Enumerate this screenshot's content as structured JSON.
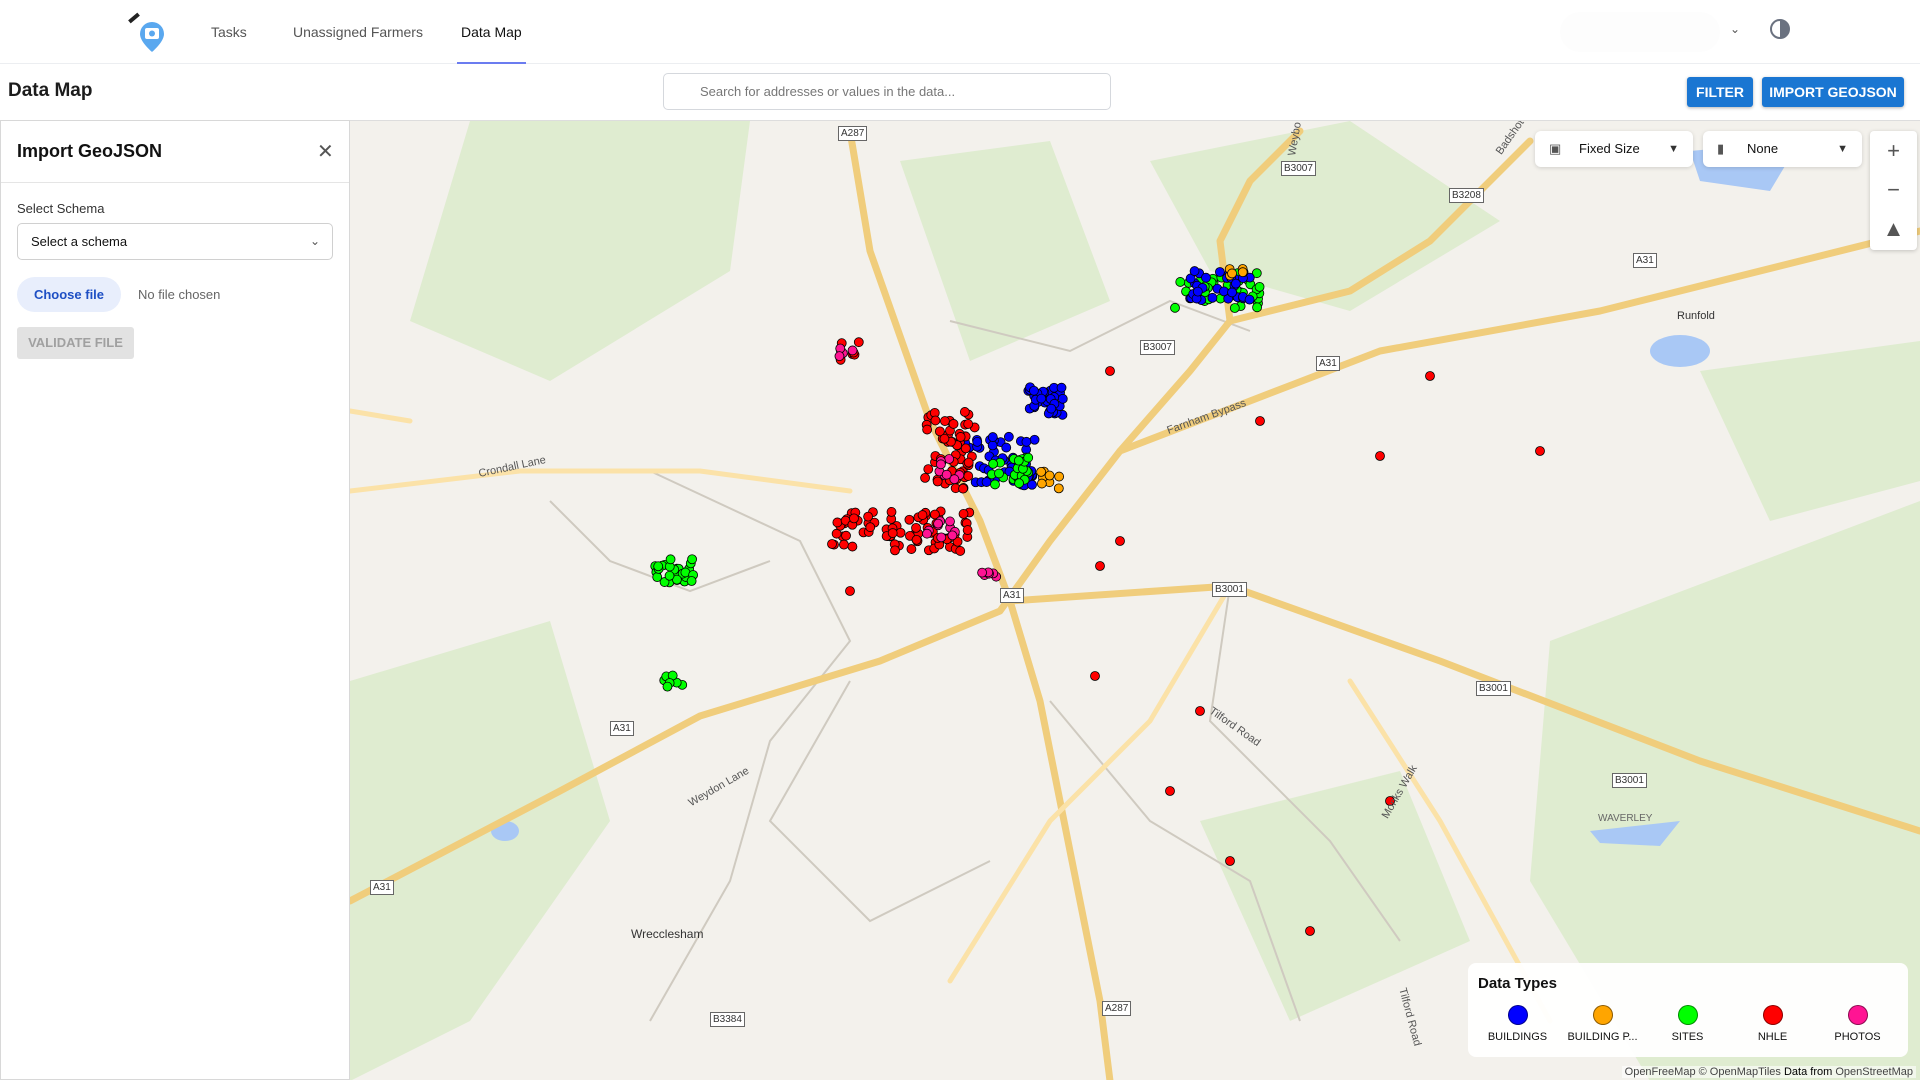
{
  "nav": {
    "tabs": [
      {
        "label": "Tasks"
      },
      {
        "label": "Unassigned Farmers"
      },
      {
        "label": "Data Map",
        "active": true
      }
    ]
  },
  "page": {
    "title": "Data Map"
  },
  "search": {
    "placeholder": "Search for addresses or values in the data..."
  },
  "toolbar": {
    "filter_label": "FILTER",
    "import_label": "IMPORT GEOJSON"
  },
  "panel": {
    "title": "Import GeoJSON",
    "schema_label": "Select Schema",
    "schema_value": "Select a schema",
    "choose_file_label": "Choose file",
    "no_file_text": "No file chosen",
    "validate_label": "VALIDATE FILE"
  },
  "map_controls": {
    "size_mode": "Fixed Size",
    "chart_mode": "None"
  },
  "map_labels": {
    "roads": [
      "A287",
      "B3007",
      "B3208",
      "A31",
      "B3007",
      "A31",
      "A31",
      "B3001",
      "B3001",
      "A31",
      "B3001",
      "A31",
      "B3384",
      "A287"
    ],
    "names": [
      "Runfold",
      "Farnham Bypass",
      "Crondall Lane",
      "Tilford Road",
      "Weydon Lane",
      "Monks Walk",
      "WAVERLEY",
      "Wrecclesham",
      "Tilford Road",
      "Badshot",
      "Weybo"
    ]
  },
  "legend": {
    "title": "Data Types",
    "items": [
      {
        "label": "BUILDINGS",
        "color": "#0000ff"
      },
      {
        "label": "BUILDING P...",
        "color": "#ffa500"
      },
      {
        "label": "SITES",
        "color": "#00ff00"
      },
      {
        "label": "NHLE",
        "color": "#ff0000"
      },
      {
        "label": "PHOTOS",
        "color": "#ff1493"
      }
    ]
  },
  "attribution": {
    "left": "OpenFreeMap © OpenMapTiles",
    "mid": "Data from",
    "right": "OpenStreetMap"
  }
}
